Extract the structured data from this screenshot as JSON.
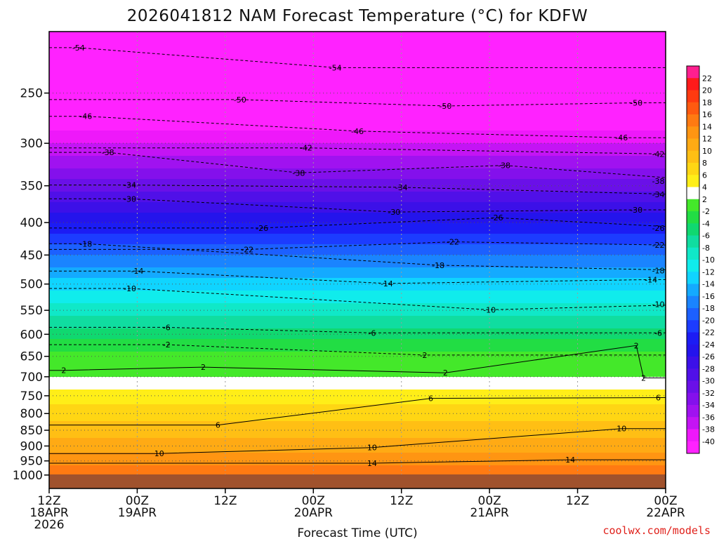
{
  "chart_data": {
    "type": "heatmap",
    "title": "2026041812 NAM Forecast Temperature (°C) for KDFW",
    "xlabel": "Forecast Time (UTC)",
    "ylabel": "",
    "credit": "coolwx.com/models",
    "x_range_hours": [
      0,
      84
    ],
    "x_ticks": [
      {
        "hour": 0,
        "line1": "12Z",
        "line2": "18APR",
        "line3": "2026"
      },
      {
        "hour": 12,
        "line1": "00Z",
        "line2": "19APR",
        "line3": ""
      },
      {
        "hour": 24,
        "line1": "12Z",
        "line2": "",
        "line3": ""
      },
      {
        "hour": 36,
        "line1": "00Z",
        "line2": "20APR",
        "line3": ""
      },
      {
        "hour": 48,
        "line1": "12Z",
        "line2": "",
        "line3": ""
      },
      {
        "hour": 60,
        "line1": "00Z",
        "line2": "21APR",
        "line3": ""
      },
      {
        "hour": 72,
        "line1": "12Z",
        "line2": "",
        "line3": ""
      },
      {
        "hour": 84,
        "line1": "00Z",
        "line2": "22APR",
        "line3": ""
      }
    ],
    "y_scale": "log-pressure",
    "y_range_hpa": [
      1050,
      200
    ],
    "y_ticks": [
      250,
      300,
      350,
      400,
      450,
      500,
      550,
      600,
      650,
      700,
      750,
      800,
      850,
      900,
      950,
      1000
    ],
    "colorbar": {
      "labels": [
        22,
        20,
        18,
        16,
        14,
        12,
        10,
        8,
        6,
        4,
        2,
        -2,
        -4,
        -6,
        -8,
        -10,
        -12,
        -14,
        -16,
        -18,
        -20,
        -22,
        -24,
        -26,
        -28,
        -30,
        -32,
        -34,
        -36,
        -38,
        -40
      ],
      "colors": [
        "#ff1f8f",
        "#ff1a1a",
        "#ff3a10",
        "#ff5a10",
        "#ff7a12",
        "#ff9512",
        "#ffaa14",
        "#ffbf14",
        "#ffd614",
        "#ffee18",
        "#ffffff",
        "#44e82a",
        "#22dd44",
        "#10d870",
        "#10dda0",
        "#10e8c8",
        "#10ecec",
        "#10d4ff",
        "#14aaff",
        "#1a84ff",
        "#1c60ff",
        "#1c3cff",
        "#1c1cf4",
        "#2414ec",
        "#3c10e8",
        "#5010e8",
        "#6a10e8",
        "#8410ec",
        "#a012f0",
        "#c414f4",
        "#ee18fa",
        "#ff22ff"
      ]
    },
    "isotherm_profile": [
      {
        "hpa": 1000,
        "temp": 16
      },
      {
        "hpa": 950,
        "temp": 13
      },
      {
        "hpa": 900,
        "temp": 11
      },
      {
        "hpa": 850,
        "temp": 9
      },
      {
        "hpa": 800,
        "temp": 7
      },
      {
        "hpa": 750,
        "temp": 5
      },
      {
        "hpa": 700,
        "temp": 2
      },
      {
        "hpa": 675,
        "temp": 1
      },
      {
        "hpa": 650,
        "temp": -1
      },
      {
        "hpa": 600,
        "temp": -5
      },
      {
        "hpa": 550,
        "temp": -9
      },
      {
        "hpa": 500,
        "temp": -13
      },
      {
        "hpa": 450,
        "temp": -18
      },
      {
        "hpa": 400,
        "temp": -24
      },
      {
        "hpa": 350,
        "temp": -31
      },
      {
        "hpa": 300,
        "temp": -38
      },
      {
        "hpa": 250,
        "temp": -46
      },
      {
        "hpa": 200,
        "temp": -55
      }
    ],
    "contour_labels": [
      {
        "text": "-54",
        "hour": 4,
        "hpa": 212
      },
      {
        "text": "-54",
        "hour": 39,
        "hpa": 228
      },
      {
        "text": "-50",
        "hour": 26,
        "hpa": 256
      },
      {
        "text": "-50",
        "hour": 54,
        "hpa": 262
      },
      {
        "text": "-50",
        "hour": 80,
        "hpa": 259
      },
      {
        "text": "-46",
        "hour": 5,
        "hpa": 272
      },
      {
        "text": "-46",
        "hour": 42,
        "hpa": 287
      },
      {
        "text": "-46",
        "hour": 78,
        "hpa": 294
      },
      {
        "text": "-42",
        "hour": 35,
        "hpa": 305
      },
      {
        "text": "-42",
        "hour": 85,
        "hpa": 312
      },
      {
        "text": "-38",
        "hour": 8,
        "hpa": 310
      },
      {
        "text": "-38",
        "hour": 34,
        "hpa": 334
      },
      {
        "text": "-38",
        "hour": 62,
        "hpa": 325
      },
      {
        "text": "-38",
        "hour": 90,
        "hpa": 344
      },
      {
        "text": "-34",
        "hour": 11,
        "hpa": 349
      },
      {
        "text": "-34",
        "hour": 48,
        "hpa": 352
      },
      {
        "text": "-34",
        "hour": 85,
        "hpa": 361
      },
      {
        "text": "-30",
        "hour": 11,
        "hpa": 367
      },
      {
        "text": "-30",
        "hour": 47,
        "hpa": 385
      },
      {
        "text": "-30",
        "hour": 80,
        "hpa": 382
      },
      {
        "text": "-26",
        "hour": 29,
        "hpa": 408
      },
      {
        "text": "-26",
        "hour": 61,
        "hpa": 393
      },
      {
        "text": "-26",
        "hour": 88,
        "hpa": 408
      },
      {
        "text": "-22",
        "hour": 27,
        "hpa": 441
      },
      {
        "text": "-22",
        "hour": 55,
        "hpa": 429
      },
      {
        "text": "-22",
        "hour": 84,
        "hpa": 434
      },
      {
        "text": "-18",
        "hour": 5,
        "hpa": 432
      },
      {
        "text": "-18",
        "hour": 53,
        "hpa": 467
      },
      {
        "text": "-18",
        "hour": 88,
        "hpa": 476
      },
      {
        "text": "-14",
        "hour": 12,
        "hpa": 477
      },
      {
        "text": "-14",
        "hour": 46,
        "hpa": 499
      },
      {
        "text": "-14",
        "hour": 82,
        "hpa": 492
      },
      {
        "text": "-10",
        "hour": 11,
        "hpa": 508
      },
      {
        "text": "-10",
        "hour": 60,
        "hpa": 549
      },
      {
        "text": "-10",
        "hour": 89,
        "hpa": 538
      },
      {
        "text": "-6",
        "hour": 16,
        "hpa": 585
      },
      {
        "text": "-6",
        "hour": 44,
        "hpa": 597
      },
      {
        "text": "-6",
        "hour": 86,
        "hpa": 597
      },
      {
        "text": "-2",
        "hour": 16,
        "hpa": 623
      },
      {
        "text": "-2",
        "hour": 51,
        "hpa": 647
      },
      {
        "text": "2",
        "hour": 80,
        "hpa": 625
      },
      {
        "text": "2",
        "hour": 2,
        "hpa": 684
      },
      {
        "text": "2",
        "hour": 21,
        "hpa": 676
      },
      {
        "text": "2",
        "hour": 54,
        "hpa": 690
      },
      {
        "text": "2",
        "hour": 81,
        "hpa": 703
      },
      {
        "text": "6",
        "hour": 52,
        "hpa": 757
      },
      {
        "text": "6",
        "hour": 85,
        "hpa": 755
      },
      {
        "text": "6",
        "hour": 23,
        "hpa": 834
      },
      {
        "text": "10",
        "hour": 15,
        "hpa": 925
      },
      {
        "text": "10",
        "hour": 44,
        "hpa": 905
      },
      {
        "text": "10",
        "hour": 78,
        "hpa": 845
      },
      {
        "text": "14",
        "hour": 44,
        "hpa": 958
      },
      {
        "text": "14",
        "hour": 71,
        "hpa": 946
      }
    ]
  }
}
